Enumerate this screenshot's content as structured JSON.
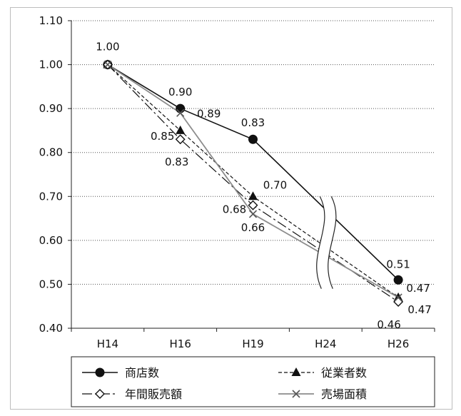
{
  "chart_data": {
    "type": "line",
    "categories": [
      "H14",
      "H16",
      "H19",
      "H24",
      "H26"
    ],
    "ylim": [
      0.4,
      1.1
    ],
    "yticks": [
      "0.40",
      "0.50",
      "0.60",
      "0.70",
      "0.80",
      "0.90",
      "1.00",
      "1.10"
    ],
    "grid": true,
    "axis_break": "H24",
    "legend_position": "bottom",
    "series": [
      {
        "name": "商店数",
        "style": "solid-black-filled-circle",
        "color": "#111111",
        "points": [
          {
            "x": "H14",
            "y": 1.0
          },
          {
            "x": "H16",
            "y": 0.9
          },
          {
            "x": "H19",
            "y": 0.83
          },
          {
            "x": "H26",
            "y": 0.51
          }
        ],
        "labels": [
          "1.00",
          "0.90",
          "0.83",
          "0.51"
        ]
      },
      {
        "name": "従業者数",
        "style": "dashed-black-filled-triangle",
        "color": "#111111",
        "points": [
          {
            "x": "H14",
            "y": 1.0
          },
          {
            "x": "H16",
            "y": 0.85
          },
          {
            "x": "H19",
            "y": 0.7
          },
          {
            "x": "H26",
            "y": 0.47
          }
        ],
        "labels": [
          "",
          "0.85",
          "0.70",
          "0.47"
        ]
      },
      {
        "name": "年間販売額",
        "style": "dashdot-black-open-diamond",
        "color": "#111111",
        "points": [
          {
            "x": "H14",
            "y": 1.0
          },
          {
            "x": "H16",
            "y": 0.83
          },
          {
            "x": "H19",
            "y": 0.68
          },
          {
            "x": "H26",
            "y": 0.46
          }
        ],
        "labels": [
          "",
          "0.83",
          "0.68",
          "0.46"
        ]
      },
      {
        "name": "売場面積",
        "style": "solid-gray-x",
        "color": "#8c8c8c",
        "points": [
          {
            "x": "H14",
            "y": 1.0
          },
          {
            "x": "H16",
            "y": 0.89
          },
          {
            "x": "H19",
            "y": 0.66
          },
          {
            "x": "H26",
            "y": 0.47
          }
        ],
        "labels": [
          "",
          "0.89",
          "0.66",
          "0.47"
        ]
      }
    ]
  }
}
